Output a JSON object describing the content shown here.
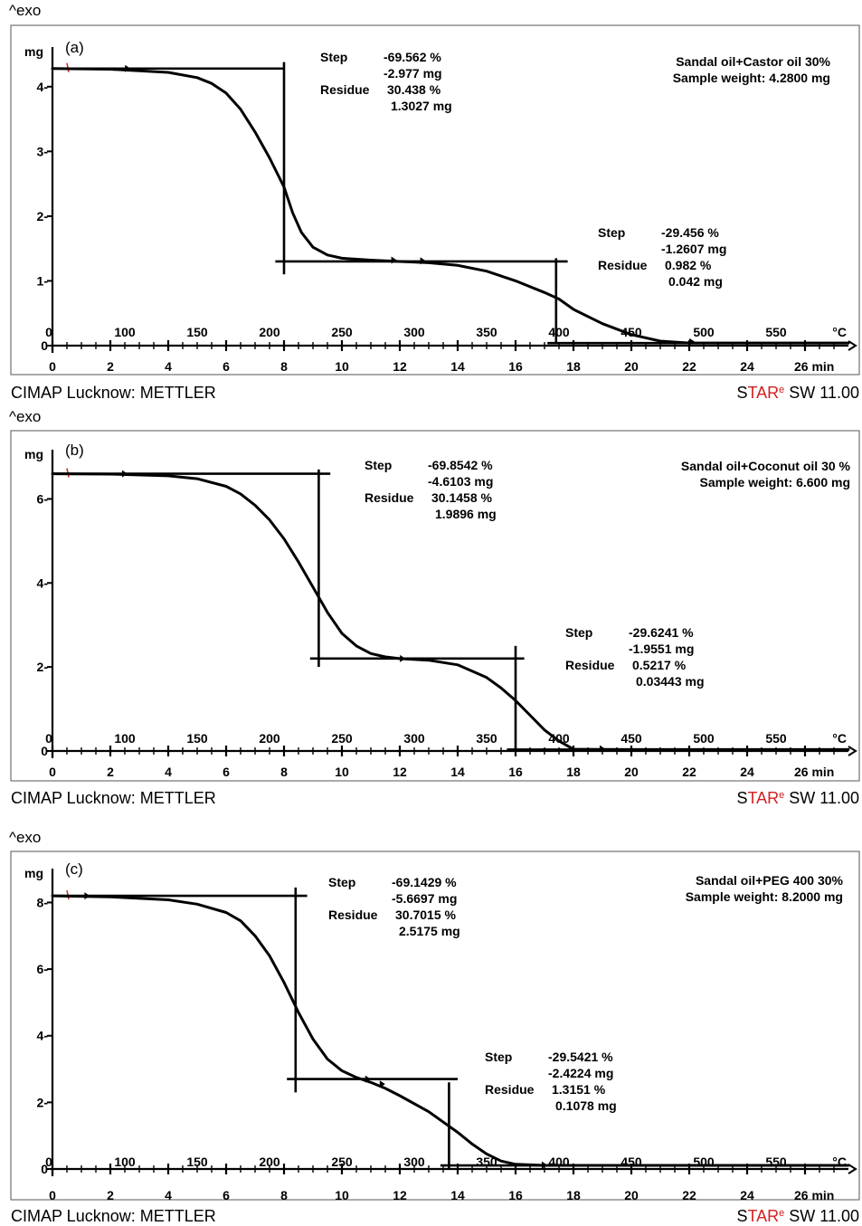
{
  "colors": {
    "axis": "#000000",
    "curve": "#000000",
    "accent": "#d32020",
    "background": "#ffffff"
  },
  "footer": {
    "left": "CIMAP Lucknow: METTLER",
    "brand_s": "S",
    "brand_tar": "TAR",
    "brand_e": "e",
    "brand_rest": " SW 11.00"
  },
  "exo_label": "^exo",
  "chart_data": [
    {
      "type": "line",
      "panel_label": "(a)",
      "y_unit": "mg",
      "x_unit_time": "min",
      "x_unit_temp": "°C",
      "ylim": [
        0,
        4.5
      ],
      "y_ticks": [
        0,
        1,
        2,
        3,
        4
      ],
      "y_tick_labels": [
        "0",
        "1-",
        "2-",
        "3-",
        "4-"
      ],
      "xlim_min": [
        0,
        27.5
      ],
      "min_ticks": [
        0,
        2,
        4,
        6,
        8,
        10,
        12,
        14,
        16,
        18,
        20,
        22,
        24
      ],
      "min_last_label": "26 min",
      "temp_ticks": [
        {
          "min": 0,
          "label": "0"
        },
        {
          "min": 2.5,
          "label": "100"
        },
        {
          "min": 5,
          "label": "150"
        },
        {
          "min": 7.5,
          "label": "200"
        },
        {
          "min": 10,
          "label": "250"
        },
        {
          "min": 12.5,
          "label": "300"
        },
        {
          "min": 15,
          "label": "350"
        },
        {
          "min": 17.5,
          "label": "400"
        },
        {
          "min": 20,
          "label": "450"
        },
        {
          "min": 22.5,
          "label": "500"
        },
        {
          "min": 25,
          "label": "550"
        }
      ],
      "temp_zero_label": "0",
      "series": [
        {
          "x": [
            0,
            2,
            4,
            5,
            5.5,
            6,
            6.5,
            7,
            7.5,
            8,
            8.3,
            8.6,
            9,
            9.5,
            10,
            11,
            12,
            13,
            14,
            15,
            16,
            17,
            17.5,
            18,
            19,
            20,
            21,
            22,
            24,
            27.5
          ],
          "y": [
            4.28,
            4.27,
            4.22,
            4.14,
            4.05,
            3.9,
            3.65,
            3.3,
            2.9,
            2.45,
            2.05,
            1.75,
            1.52,
            1.4,
            1.35,
            1.32,
            1.3,
            1.28,
            1.24,
            1.15,
            1.0,
            0.82,
            0.72,
            0.56,
            0.34,
            0.17,
            0.07,
            0.04,
            0.04,
            0.04
          ]
        }
      ],
      "tangents": [
        {
          "x1": 0,
          "x2": 8.0,
          "y": 4.28
        },
        {
          "x": 8.0,
          "y1": 1.1,
          "y2": 4.38
        },
        {
          "x1": 7.7,
          "x2": 17.8,
          "y": 1.3
        },
        {
          "x": 17.4,
          "y1": 0.04,
          "y2": 1.35
        },
        {
          "x1": 17.1,
          "x2": 27.5,
          "y": 0.04
        }
      ],
      "markers": [
        {
          "x": 2.6,
          "y": 4.28
        },
        {
          "x": 11.8,
          "y": 1.32
        },
        {
          "x": 12.8,
          "y": 1.31
        },
        {
          "x": 22.1,
          "y": 0.06
        }
      ],
      "steps": [
        {
          "step_label": "Step",
          "step_pct": "-69.562 %",
          "step_mg": "-2.977 mg",
          "residue_label": "Residue",
          "residue_pct": "30.438 %",
          "residue_mg": "1.3027 mg"
        },
        {
          "step_label": "Step",
          "step_pct": "-29.456 %",
          "step_mg": "-1.2607 mg",
          "residue_label": "Residue",
          "residue_pct": "0.982 %",
          "residue_mg": "0.042 mg"
        }
      ],
      "sample_title": "Sandal oil+Castor oil 30%",
      "sample_weight": "Sample weight: 4.2800 mg"
    },
    {
      "type": "line",
      "panel_label": "(b)",
      "y_unit": "mg",
      "x_unit_time": "min",
      "x_unit_temp": "°C",
      "ylim": [
        0,
        7.0
      ],
      "y_ticks": [
        0,
        2,
        4,
        6
      ],
      "y_tick_labels": [
        "0",
        "2-",
        "4-",
        "6-"
      ],
      "xlim_min": [
        0,
        27.5
      ],
      "min_ticks": [
        0,
        2,
        4,
        6,
        8,
        10,
        12,
        14,
        16,
        18,
        20,
        22,
        24
      ],
      "min_last_label": "26 min",
      "temp_ticks": [
        {
          "min": 0,
          "label": "0"
        },
        {
          "min": 2.5,
          "label": "100"
        },
        {
          "min": 5,
          "label": "150"
        },
        {
          "min": 7.5,
          "label": "200"
        },
        {
          "min": 10,
          "label": "250"
        },
        {
          "min": 12.5,
          "label": "300"
        },
        {
          "min": 15,
          "label": "350"
        },
        {
          "min": 17.5,
          "label": "400"
        },
        {
          "min": 20,
          "label": "450"
        },
        {
          "min": 22.5,
          "label": "500"
        },
        {
          "min": 25,
          "label": "550"
        }
      ],
      "temp_zero_label": "0",
      "series": [
        {
          "x": [
            0,
            2,
            4,
            5,
            6,
            6.5,
            7,
            7.5,
            8,
            8.5,
            9,
            9.5,
            10,
            10.5,
            11,
            11.5,
            12,
            13,
            14,
            15,
            15.5,
            16,
            16.5,
            17,
            17.5,
            18,
            20,
            27.5
          ],
          "y": [
            6.6,
            6.59,
            6.55,
            6.48,
            6.3,
            6.12,
            5.85,
            5.5,
            5.05,
            4.5,
            3.9,
            3.3,
            2.8,
            2.5,
            2.32,
            2.24,
            2.2,
            2.16,
            2.05,
            1.75,
            1.5,
            1.2,
            0.85,
            0.5,
            0.24,
            0.04,
            0.034,
            0.034
          ]
        }
      ],
      "tangents": [
        {
          "x1": 0,
          "x2": 9.6,
          "y": 6.6
        },
        {
          "x": 9.2,
          "y1": 2.0,
          "y2": 6.7
        },
        {
          "x1": 8.9,
          "x2": 16.3,
          "y": 2.2
        },
        {
          "x": 16.0,
          "y1": 0.0,
          "y2": 2.5
        },
        {
          "x1": 15.7,
          "x2": 27.5,
          "y": 0.034
        }
      ],
      "markers": [
        {
          "x": 2.5,
          "y": 6.6
        },
        {
          "x": 12.1,
          "y": 2.2
        },
        {
          "x": 19.0,
          "y": 0.05
        }
      ],
      "steps": [
        {
          "step_label": "Step",
          "step_pct": "-69.8542 %",
          "step_mg": "-4.6103 mg",
          "residue_label": "Residue",
          "residue_pct": "30.1458 %",
          "residue_mg": "1.9896 mg"
        },
        {
          "step_label": "Step",
          "step_pct": "-29.6241 %",
          "step_mg": "-1.9551 mg",
          "residue_label": "Residue",
          "residue_pct": "0.5217 %",
          "residue_mg": "0.03443 mg"
        }
      ],
      "sample_title": "Sandal oil+Coconut oil 30 %",
      "sample_weight": "Sample weight: 6.600 mg"
    },
    {
      "type": "line",
      "panel_label": "(c)",
      "y_unit": "mg",
      "x_unit_time": "min",
      "x_unit_temp": "°C",
      "ylim": [
        0,
        8.8
      ],
      "y_ticks": [
        0,
        2,
        4,
        6,
        8
      ],
      "y_tick_labels": [
        "0",
        "2-",
        "4-",
        "6-",
        "8-"
      ],
      "xlim_min": [
        0,
        27.5
      ],
      "min_ticks": [
        0,
        2,
        4,
        6,
        8,
        10,
        12,
        14,
        16,
        18,
        20,
        22,
        24
      ],
      "min_last_label": "26 min",
      "temp_ticks": [
        {
          "min": 0,
          "label": "0"
        },
        {
          "min": 2.5,
          "label": "100"
        },
        {
          "min": 5,
          "label": "150"
        },
        {
          "min": 7.5,
          "label": "200"
        },
        {
          "min": 10,
          "label": "250"
        },
        {
          "min": 12.5,
          "label": "300"
        },
        {
          "min": 15,
          "label": "350"
        },
        {
          "min": 17.5,
          "label": "400"
        },
        {
          "min": 20,
          "label": "450"
        },
        {
          "min": 22.5,
          "label": "500"
        },
        {
          "min": 25,
          "label": "550"
        }
      ],
      "temp_zero_label": "0",
      "series": [
        {
          "x": [
            0,
            2,
            4,
            5,
            6,
            6.5,
            7,
            7.5,
            8,
            8.5,
            9,
            9.5,
            10,
            10.5,
            11,
            11.5,
            12,
            13,
            14,
            14.5,
            15,
            15.5,
            16,
            17,
            18,
            20,
            27.5
          ],
          "y": [
            8.2,
            8.17,
            8.08,
            7.95,
            7.7,
            7.45,
            7.0,
            6.4,
            5.6,
            4.7,
            3.9,
            3.3,
            2.95,
            2.75,
            2.6,
            2.42,
            2.2,
            1.72,
            1.1,
            0.75,
            0.45,
            0.24,
            0.14,
            0.11,
            0.108,
            0.108,
            0.108
          ]
        }
      ],
      "tangents": [
        {
          "x1": 0,
          "x2": 8.8,
          "y": 8.2
        },
        {
          "x": 8.4,
          "y1": 2.3,
          "y2": 8.45
        },
        {
          "x1": 8.1,
          "x2": 14.0,
          "y": 2.7
        },
        {
          "x": 13.7,
          "y1": 0.0,
          "y2": 2.6
        },
        {
          "x1": 13.4,
          "x2": 27.5,
          "y": 0.108
        }
      ],
      "markers": [
        {
          "x": 1.2,
          "y": 8.2
        },
        {
          "x": 10.9,
          "y": 2.7
        },
        {
          "x": 11.4,
          "y": 2.55
        },
        {
          "x": 17.0,
          "y": 0.12
        }
      ],
      "steps": [
        {
          "step_label": "Step",
          "step_pct": "-69.1429 %",
          "step_mg": "-5.6697 mg",
          "residue_label": "Residue",
          "residue_pct": "30.7015 %",
          "residue_mg": "2.5175 mg"
        },
        {
          "step_label": "Step",
          "step_pct": "-29.5421 %",
          "step_mg": "-2.4224 mg",
          "residue_label": "Residue",
          "residue_pct": "1.3151 %",
          "residue_mg": "0.1078 mg"
        }
      ],
      "sample_title": "Sandal oil+PEG 400 30%",
      "sample_weight": "Sample weight: 8.2000 mg"
    }
  ]
}
